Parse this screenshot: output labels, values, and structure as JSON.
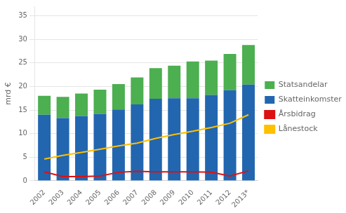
{
  "chart_data": {
    "type": "bar",
    "ylabel": "mrd €",
    "categories": [
      "2002",
      "2003",
      "2004",
      "2005",
      "2006",
      "2007",
      "2008",
      "2009",
      "2010",
      "2011",
      "2012",
      "2013*"
    ],
    "series": [
      {
        "name": "Skatteinkomster",
        "type": "bar",
        "color": "#2266B0",
        "values": [
          14.0,
          13.3,
          13.7,
          14.2,
          15.1,
          16.2,
          17.4,
          17.5,
          17.5,
          18.2,
          19.2,
          20.4
        ]
      },
      {
        "name": "Statsandelar",
        "type": "bar",
        "color": "#4CAF50",
        "values": [
          4.0,
          4.5,
          4.8,
          5.1,
          5.4,
          5.7,
          6.5,
          6.9,
          7.8,
          7.3,
          7.7,
          8.4
        ]
      },
      {
        "name": "Årsbidrag",
        "type": "line",
        "color": "#DD1111",
        "values": [
          1.9,
          0.9,
          0.9,
          1.0,
          1.8,
          2.0,
          1.9,
          1.9,
          1.9,
          1.8,
          1.0,
          2.1
        ]
      },
      {
        "name": "Lånestock",
        "type": "line",
        "color": "#FFC000",
        "values": [
          4.6,
          5.4,
          6.0,
          6.7,
          7.4,
          8.0,
          9.0,
          9.8,
          10.5,
          11.3,
          12.2,
          14.0
        ]
      }
    ],
    "stacked": true,
    "ylim": [
      0,
      37
    ],
    "yticks": [
      0,
      5,
      10,
      15,
      20,
      25,
      30,
      35
    ],
    "grid": true,
    "legend": "right"
  }
}
